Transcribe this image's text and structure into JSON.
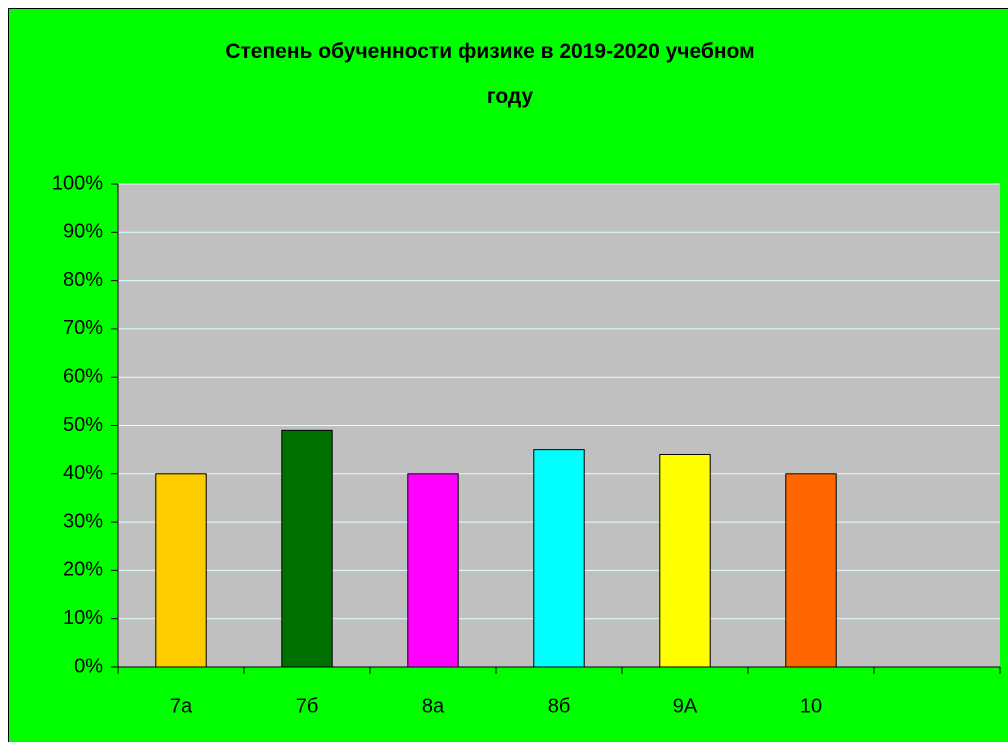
{
  "chart_data": {
    "type": "bar",
    "title": "Степень обученности физике в 2019-2020 учебном году",
    "categories": [
      "7а",
      "7б",
      "8а",
      "8б",
      "9А",
      "10",
      null
    ],
    "values": [
      40,
      49,
      40,
      45,
      44,
      40,
      null
    ],
    "colors": [
      "#ffcc00",
      "#007000",
      "#ff00ff",
      "#00ffff",
      "#ffff00",
      "#ff6600",
      null
    ],
    "ylim": [
      0,
      100
    ],
    "yticks": [
      {
        "value": 0,
        "label": "0%"
      },
      {
        "value": 10,
        "label": "10%"
      },
      {
        "value": 20,
        "label": "20%"
      },
      {
        "value": 30,
        "label": "30%"
      },
      {
        "value": 40,
        "label": "40%"
      },
      {
        "value": 50,
        "label": "50%"
      },
      {
        "value": 60,
        "label": "60%"
      },
      {
        "value": 70,
        "label": "70%"
      },
      {
        "value": 80,
        "label": "80%"
      },
      {
        "value": 90,
        "label": "90%"
      },
      {
        "value": 100,
        "label": "100%"
      }
    ],
    "grid": true
  }
}
